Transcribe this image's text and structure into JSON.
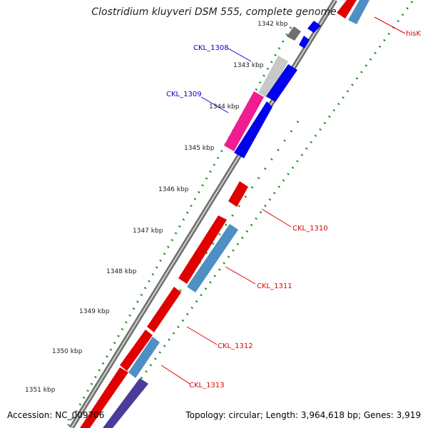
{
  "title": "Clostridium kluyveri DSM 555, complete genome",
  "accession": "Accession: NC_009706",
  "summary": "Topology: circular; Length: 3,964,618 bp; Genes: 3,919",
  "ruler": [
    "1342 kbp",
    "1343 kbp",
    "1344 kbp",
    "1345 kbp",
    "1346 kbp",
    "1347 kbp",
    "1348 kbp",
    "1349 kbp",
    "1350 kbp",
    "1351 kbp"
  ],
  "genes": [
    {
      "name": "hisK",
      "color": "#e00000"
    },
    {
      "name": "CKL_1308",
      "color": "#0000cc"
    },
    {
      "name": "CKL_1309",
      "color": "#0000cc"
    },
    {
      "name": "CKL_1310",
      "color": "#e00000"
    },
    {
      "name": "CKL_1311",
      "color": "#e00000"
    },
    {
      "name": "CKL_1312",
      "color": "#e00000"
    },
    {
      "name": "CKL_1313",
      "color": "#e00000"
    }
  ]
}
